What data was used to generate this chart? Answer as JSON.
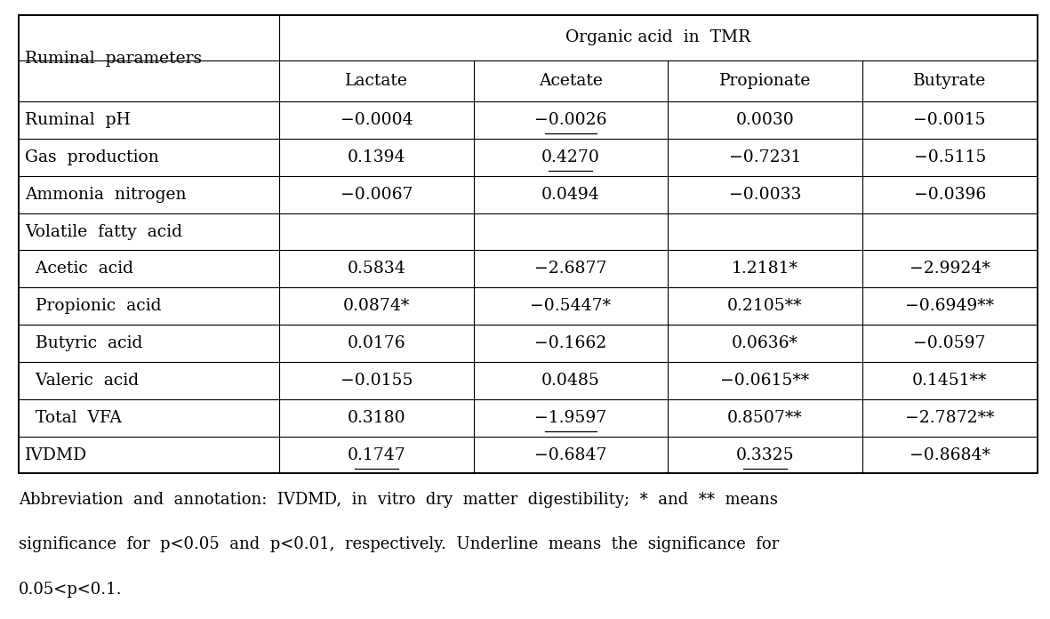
{
  "title": "Organic acid  in  TMR",
  "col0_header": "Ruminal  parameters",
  "sub_headers": [
    "Lactate",
    "Acetate",
    "Propionate",
    "Butyrate"
  ],
  "rows": [
    {
      "label": "Ruminal  pH",
      "vals": [
        "−0.0004",
        "−0.0026",
        "0.0030",
        "−0.0015"
      ],
      "ul": [
        false,
        true,
        false,
        false
      ],
      "suffix": [
        "",
        "",
        "",
        ""
      ]
    },
    {
      "label": "Gas  production",
      "vals": [
        "0.1394",
        "0.4270",
        "−0.7231",
        "−0.5115"
      ],
      "ul": [
        false,
        true,
        false,
        false
      ],
      "suffix": [
        "",
        "",
        "",
        ""
      ]
    },
    {
      "label": "Ammonia  nitrogen",
      "vals": [
        "−0.0067",
        "0.0494",
        "−0.0033",
        "−0.0396"
      ],
      "ul": [
        false,
        false,
        false,
        false
      ],
      "suffix": [
        "",
        "",
        "",
        ""
      ]
    },
    {
      "label": "Volatile  fatty  acid",
      "vals": [
        "",
        "",
        "",
        ""
      ],
      "ul": [
        false,
        false,
        false,
        false
      ],
      "suffix": [
        "",
        "",
        "",
        ""
      ]
    },
    {
      "label": "  Acetic  acid",
      "vals": [
        "0.5834",
        "−2.6877",
        "1.2181",
        "−2.9924"
      ],
      "ul": [
        false,
        false,
        false,
        false
      ],
      "suffix": [
        "",
        "",
        "*",
        "*"
      ]
    },
    {
      "label": "  Propionic  acid",
      "vals": [
        "0.0874",
        "−0.5447",
        "0.2105",
        "−0.6949"
      ],
      "ul": [
        false,
        false,
        false,
        false
      ],
      "suffix": [
        "*",
        "*",
        "**",
        "**"
      ]
    },
    {
      "label": "  Butyric  acid",
      "vals": [
        "0.0176",
        "−0.1662",
        "0.0636",
        "−0.0597"
      ],
      "ul": [
        false,
        false,
        false,
        false
      ],
      "suffix": [
        "",
        "",
        "*",
        ""
      ]
    },
    {
      "label": "  Valeric  acid",
      "vals": [
        "−0.0155",
        "0.0485",
        "−0.0615",
        "0.1451"
      ],
      "ul": [
        false,
        false,
        false,
        false
      ],
      "suffix": [
        "",
        "",
        "**",
        "**"
      ]
    },
    {
      "label": "  Total  VFA",
      "vals": [
        "0.3180",
        "−1.9597",
        "0.8507",
        "−2.7872"
      ],
      "ul": [
        false,
        true,
        false,
        false
      ],
      "suffix": [
        "",
        "",
        "**",
        "**"
      ]
    },
    {
      "label": "IVDMD",
      "vals": [
        "0.1747",
        "−0.6847",
        "0.3325",
        "−0.8684"
      ],
      "ul": [
        true,
        false,
        true,
        false
      ],
      "suffix": [
        "",
        "",
        "",
        "*"
      ]
    }
  ],
  "footnote": "Abbreviation  and  annotation:  IVDMD,  in  vitro  dry  matter  digestibility;  *  and  **  means\nsignificance  for  p<0.05  and  p<0.01,  respectively.  Underline  means  the  significance  for\n0.05<p<0.1.",
  "bg_color": "#ffffff",
  "text_color": "#000000",
  "font_size": 13.5,
  "footnote_font_size": 13.0
}
